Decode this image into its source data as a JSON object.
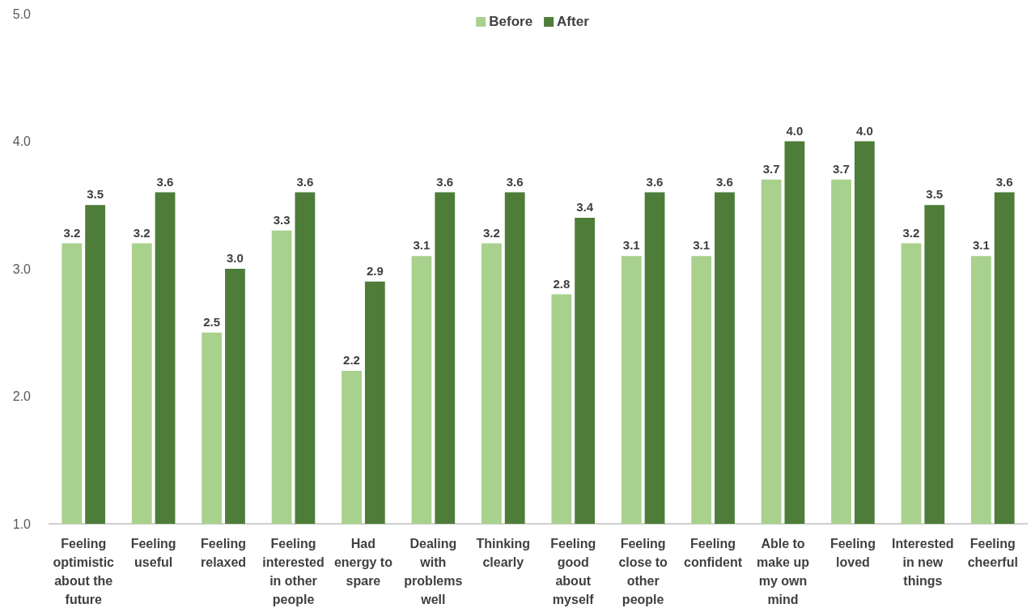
{
  "chart_data": {
    "type": "bar",
    "categories": [
      "Feeling optimistic about the future",
      "Feeling useful",
      "Feeling relaxed",
      "Feeling interested in other people",
      "Had energy to spare",
      "Dealing with problems well",
      "Thinking clearly",
      "Feeling good about myself",
      "Feeling close to other people",
      "Feeling confident",
      "Able to make up my own mind",
      "Feeling loved",
      "Interested in new things",
      "Feeling cheerful"
    ],
    "series": [
      {
        "name": "Before",
        "color": "#a9d18e",
        "values": [
          3.2,
          3.2,
          2.5,
          3.3,
          2.2,
          3.1,
          3.2,
          2.8,
          3.1,
          3.1,
          3.7,
          3.7,
          3.2,
          3.1
        ],
        "value_labels": [
          "3.2",
          "3.2",
          "2.5",
          "3.3",
          "2.2",
          "3.1",
          "3.2",
          "2.8",
          "3.1",
          "3.1",
          "3.7",
          "3.7",
          "3.2",
          "3.1"
        ]
      },
      {
        "name": "After",
        "color": "#4e7d3a",
        "values": [
          3.5,
          3.6,
          3.0,
          3.6,
          2.9,
          3.6,
          3.6,
          3.4,
          3.6,
          3.6,
          4.0,
          4.0,
          3.5,
          3.6
        ],
        "value_labels": [
          "3.5",
          "3.6",
          "3.0",
          "3.6",
          "2.9",
          "3.6",
          "3.6",
          "3.4",
          "3.6",
          "3.6",
          "4.0",
          "4.0",
          "3.5",
          "3.6"
        ]
      }
    ],
    "ylim": [
      1,
      5
    ],
    "yticks": [
      {
        "value": 1,
        "label": "1.0"
      },
      {
        "value": 2,
        "label": "2.0"
      },
      {
        "value": 3,
        "label": "3.0"
      },
      {
        "value": 4,
        "label": "4.0"
      },
      {
        "value": 5,
        "label": "5.0"
      }
    ],
    "legend": "top",
    "grid": false
  }
}
